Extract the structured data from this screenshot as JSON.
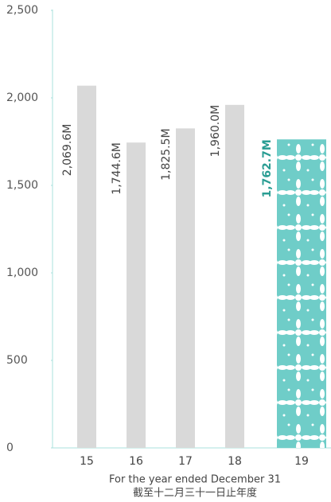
{
  "chart_data": {
    "type": "bar",
    "x_label": [
      "For the year ended December 31",
      "截至十二月三十一日止年度"
    ],
    "categories": [
      "15",
      "16",
      "17",
      "18",
      "19"
    ],
    "values": [
      2069.6,
      1744.6,
      1825.5,
      1960.0,
      1762.7
    ],
    "value_labels": [
      "2,069.6M",
      "1,744.6M",
      "1,825.5M",
      "1,960.0M",
      "1,762.7M"
    ],
    "colors": [
      "#d9d9d9",
      "#d9d9d9",
      "#d9d9d9",
      "#d9d9d9",
      "#6fcdc8"
    ],
    "ylim": [
      0,
      2500
    ],
    "yticks": [
      0,
      500,
      {
        "value": 1000,
        "label": "1,000"
      },
      {
        "value": 1500,
        "label": "1,500"
      },
      {
        "value": 2000,
        "label": "2,000"
      },
      {
        "value": 2500,
        "label": "2,500"
      }
    ],
    "grid": false
  }
}
